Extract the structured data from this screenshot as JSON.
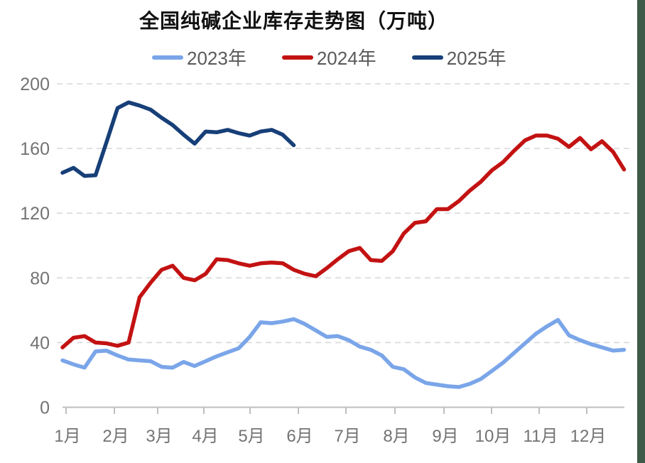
{
  "theme": {
    "background": "#ffffff",
    "title_color": "#111111",
    "gridline": "#d9d9d9",
    "axis_line": "#bfbfbf",
    "axis_text": "#737373",
    "legend_text": "#595959",
    "right_strip": "#3f5a49"
  },
  "chart_data": {
    "type": "line",
    "title": "全国纯碱企业库存走势图（万吨）",
    "xlabel": "",
    "ylabel": "",
    "legend_position": "top",
    "grid": "horizontal-dashed",
    "x_axis": {
      "granularity": "weekly",
      "tick_labels": [
        "1月",
        "2月",
        "3月",
        "4月",
        "5月",
        "6月",
        "7月",
        "8月",
        "9月",
        "10月",
        "11月",
        "12月"
      ]
    },
    "y_axis": {
      "ticks": [
        0,
        40,
        80,
        120,
        160,
        200
      ],
      "range": [
        0,
        200
      ]
    },
    "series": [
      {
        "name": "2023年",
        "color": "#7aa5e9",
        "values": [
          29,
          26.5,
          24.5,
          34.5,
          35,
          32,
          29.5,
          29,
          28.5,
          25,
          24.5,
          28,
          25.5,
          28.5,
          31.5,
          34,
          36.5,
          43.5,
          52.5,
          52,
          53,
          54.5,
          51.5,
          47.5,
          43.5,
          44,
          41.5,
          37.5,
          35.5,
          32,
          25,
          23.5,
          18.5,
          15,
          14,
          13,
          12.5,
          14.5,
          17.5,
          22.5,
          27.5,
          33.5,
          39.5,
          45.5,
          50,
          54,
          44.5,
          41.5,
          39,
          37,
          35,
          35.5
        ]
      },
      {
        "name": "2024年",
        "color": "#c31212",
        "values": [
          37,
          43,
          44,
          40,
          39.5,
          38,
          40,
          68,
          77,
          85,
          87.5,
          80,
          78.5,
          82.5,
          91.5,
          91,
          89,
          87.5,
          89,
          89.5,
          89,
          85,
          82.5,
          81,
          86,
          91.5,
          96.5,
          98.5,
          91,
          90.5,
          96.5,
          107.5,
          114,
          115,
          122.5,
          122.5,
          127.5,
          134,
          139.5,
          146.5,
          151.5,
          158.5,
          165,
          168,
          168,
          166,
          161,
          166.5,
          159.5,
          164.5,
          158,
          147
        ]
      },
      {
        "name": "2025年",
        "color": "#173f78",
        "values": [
          145,
          148,
          143,
          143.5,
          164,
          185,
          188.5,
          186.5,
          184,
          179,
          174.5,
          168.5,
          163,
          170.5,
          170,
          171.5,
          169.5,
          168,
          170.5,
          171.5,
          168.5,
          162
        ]
      }
    ]
  }
}
